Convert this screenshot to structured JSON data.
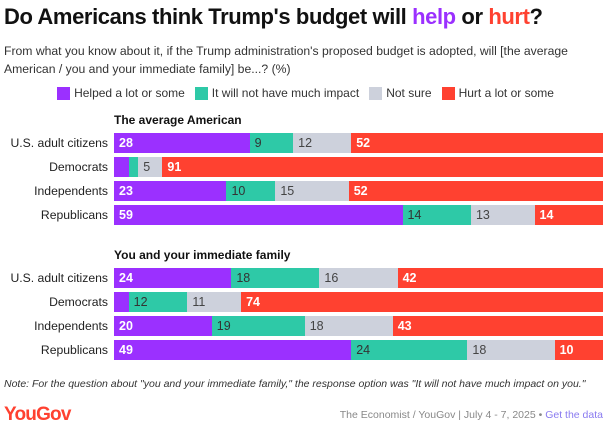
{
  "title": {
    "prefix": "Do Americans think Trump's budget will ",
    "help": "help",
    "middle": " or ",
    "hurt": "hurt",
    "suffix": "?"
  },
  "subtitle": "From what you know about it, if the Trump administration's proposed budget is adopted, will [the average American / you and your immediate family] be...? (%)",
  "colors": {
    "helped": "#9b30ff",
    "no_impact": "#2ec9a7",
    "not_sure": "#cdd1dc",
    "hurt": "#ff4130"
  },
  "chart_data": {
    "type": "bar",
    "orientation": "horizontal-stacked",
    "legend_placement": "top",
    "legend": [
      "Helped a lot or some",
      "It will not have much impact",
      "Not sure",
      "Hurt a lot or some"
    ],
    "groups": [
      {
        "title": "The average American",
        "categories": [
          "U.S. adult citizens",
          "Democrats",
          "Independents",
          "Republicans"
        ],
        "series": [
          {
            "name": "Helped a lot or some",
            "values": [
              28,
              3,
              23,
              59
            ]
          },
          {
            "name": "It will not have much impact",
            "values": [
              9,
              2,
              10,
              14
            ]
          },
          {
            "name": "Not sure",
            "values": [
              12,
              5,
              15,
              13
            ]
          },
          {
            "name": "Hurt a lot or some",
            "values": [
              52,
              91,
              52,
              14
            ]
          }
        ]
      },
      {
        "title": "You and your immediate family",
        "categories": [
          "U.S. adult citizens",
          "Democrats",
          "Independents",
          "Republicans"
        ],
        "series": [
          {
            "name": "Helped a lot or some",
            "values": [
              24,
              3,
              20,
              49
            ]
          },
          {
            "name": "It will not have much impact",
            "values": [
              18,
              12,
              19,
              24
            ]
          },
          {
            "name": "Not sure",
            "values": [
              16,
              11,
              18,
              18
            ]
          },
          {
            "name": "Hurt a lot or some",
            "values": [
              42,
              74,
              43,
              10
            ]
          }
        ]
      }
    ]
  },
  "note": "Note: For the question about \"you and your immediate family,\" the response option was \"It will not have much impact on you.\"",
  "logo": "YouGov",
  "source": {
    "text": "The Economist / YouGov | July 4 - 7, 2025 • ",
    "link": "Get the data"
  }
}
